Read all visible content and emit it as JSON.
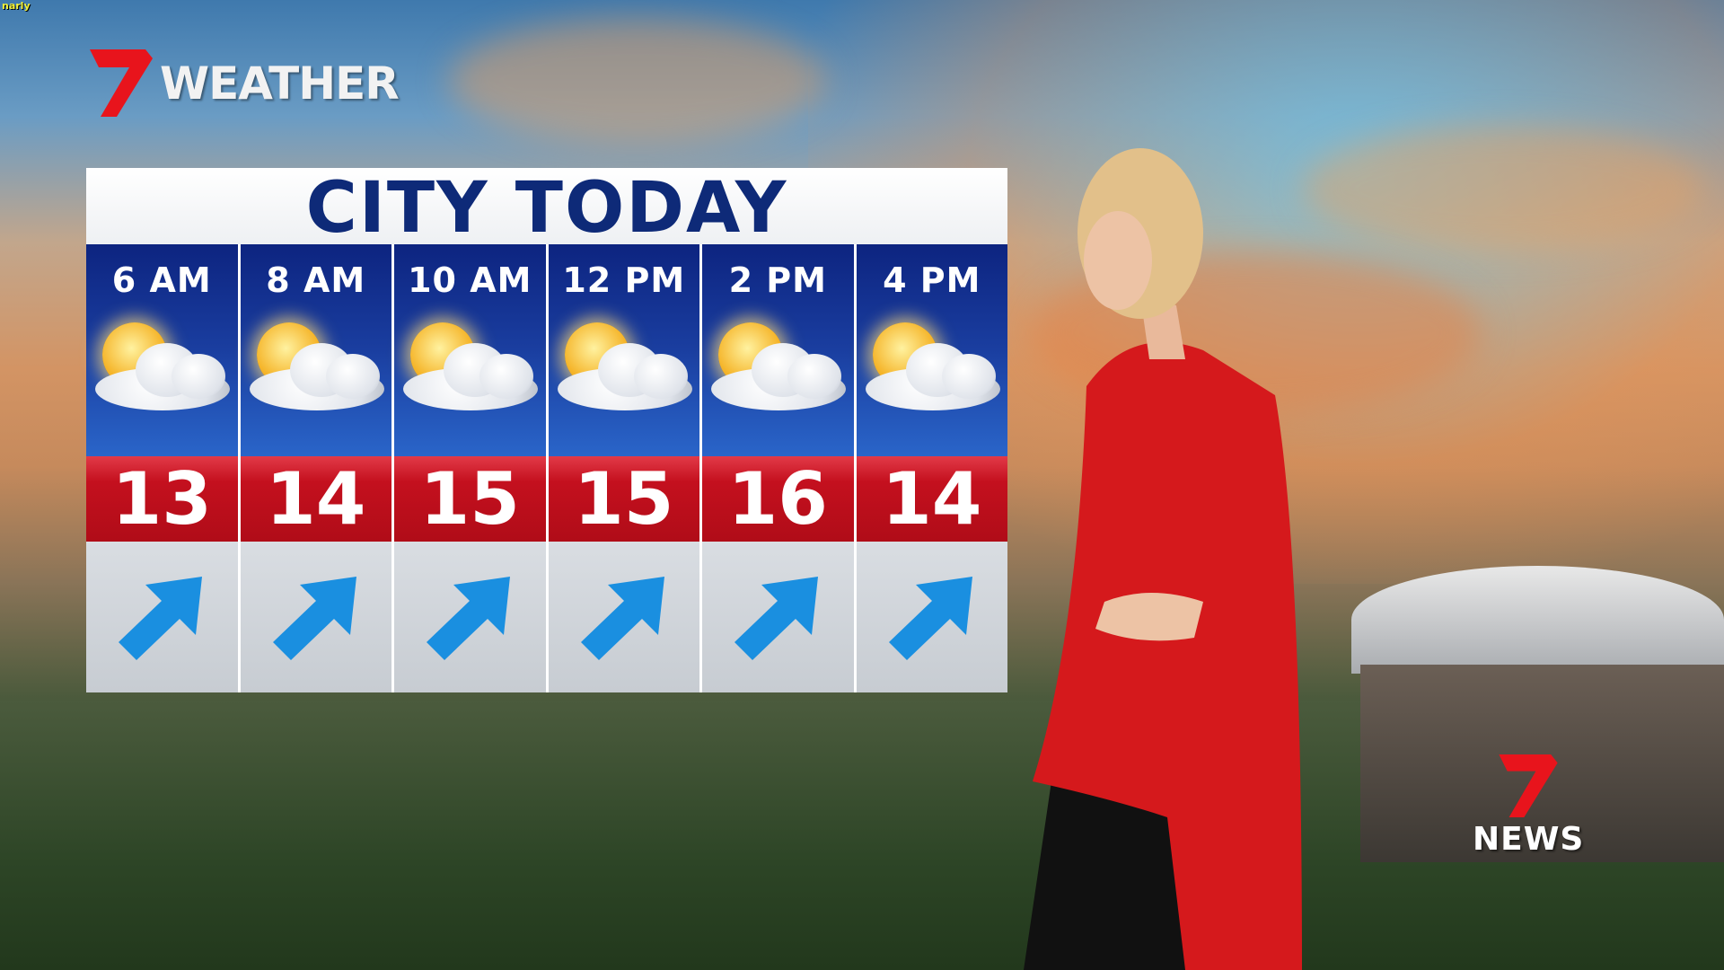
{
  "overlay_tag": "narly",
  "brand": {
    "logo_text": "WEATHER",
    "news_logo_text": "NEWS",
    "accent": "#e8141c"
  },
  "panel": {
    "title": "CITY TODAY",
    "title_color": "#0e2a78",
    "forecast": [
      {
        "time": "6 AM",
        "temp": "13",
        "icon": "sun-behind-cloud-icon",
        "wind": "north-east-arrow-icon"
      },
      {
        "time": "8 AM",
        "temp": "14",
        "icon": "sun-behind-cloud-icon",
        "wind": "north-east-arrow-icon"
      },
      {
        "time": "10 AM",
        "temp": "15",
        "icon": "sun-behind-cloud-icon",
        "wind": "north-east-arrow-icon"
      },
      {
        "time": "12 PM",
        "temp": "15",
        "icon": "sun-behind-cloud-icon",
        "wind": "north-east-arrow-icon"
      },
      {
        "time": "2 PM",
        "temp": "16",
        "icon": "sun-behind-cloud-icon",
        "wind": "north-east-arrow-icon"
      },
      {
        "time": "4 PM",
        "temp": "14",
        "icon": "sun-behind-cloud-icon",
        "wind": "north-east-arrow-icon"
      }
    ]
  }
}
